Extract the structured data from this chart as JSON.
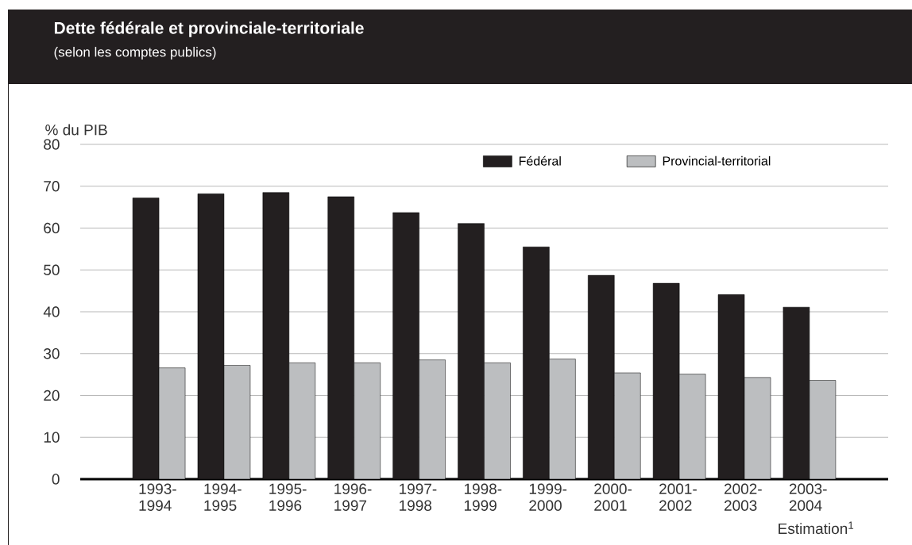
{
  "chart_data": {
    "type": "bar",
    "title": "Dette fédérale et provinciale-territoriale",
    "subtitle": "(selon les comptes publics)",
    "ylabel": "% du PIB",
    "categories": [
      "1993-1994",
      "1994-1995",
      "1995-1996",
      "1996-1997",
      "1997-1998",
      "1998-1999",
      "1999-2000",
      "2000-2001",
      "2001-2002",
      "2002-2003",
      "2003-2004"
    ],
    "series": [
      {
        "name": "Fédéral",
        "color": "#231f20",
        "values": [
          67.2,
          68.2,
          68.5,
          67.5,
          63.7,
          61.1,
          55.5,
          48.7,
          46.8,
          44.1,
          41.1
        ]
      },
      {
        "name": "Provincial-territorial",
        "color": "#bcbec0",
        "values": [
          26.6,
          27.2,
          27.8,
          27.8,
          28.5,
          27.8,
          28.7,
          25.4,
          25.1,
          24.3,
          23.6
        ]
      }
    ],
    "ylim": [
      0,
      80
    ],
    "yticks": [
      0,
      10,
      20,
      30,
      40,
      50,
      60,
      70,
      80
    ],
    "grid": "y",
    "legend": "top right",
    "annotations": [
      "Estimation$^{1}$"
    ]
  }
}
